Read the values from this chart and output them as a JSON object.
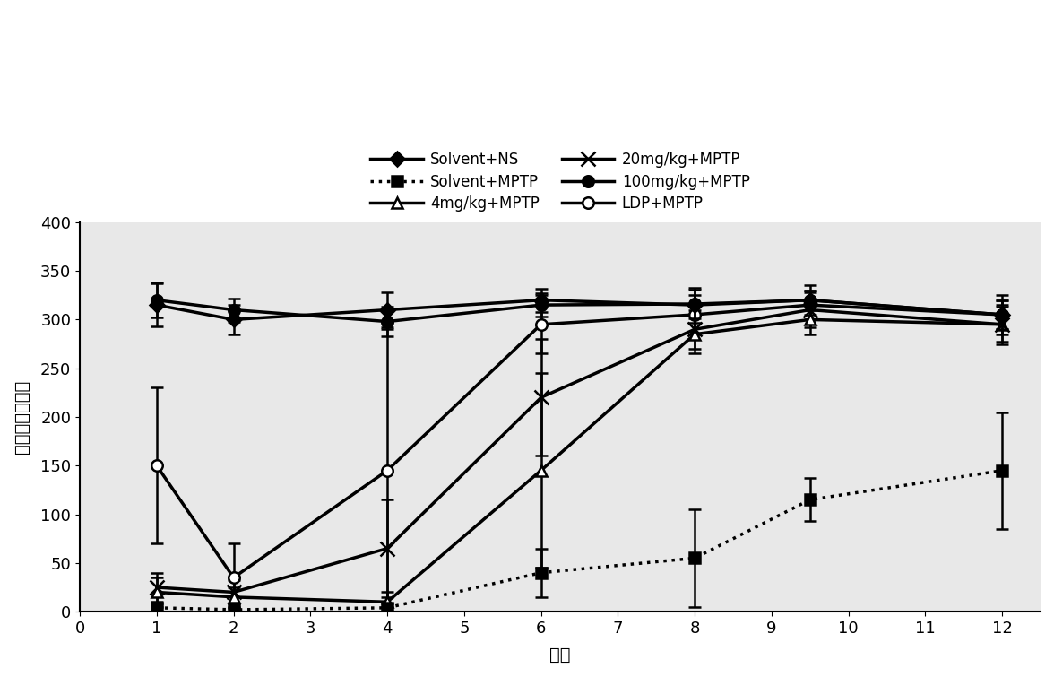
{
  "x_ticks": [
    0,
    1,
    2,
    3,
    4,
    5,
    6,
    7,
    8,
    9,
    10,
    11,
    12
  ],
  "xlim": [
    0,
    12.5
  ],
  "ylim": [
    0,
    400
  ],
  "y_ticks": [
    0,
    50,
    100,
    150,
    200,
    250,
    300,
    350,
    400
  ],
  "xlabel": "小时",
  "ylabel": "停留时间（秒）",
  "series": [
    {
      "label": "Solvent+NS",
      "x": [
        1,
        2,
        4,
        6,
        8,
        9.5,
        12
      ],
      "y": [
        315,
        300,
        310,
        320,
        315,
        320,
        305
      ],
      "yerr": [
        22,
        15,
        18,
        12,
        18,
        15,
        20
      ],
      "color": "#000000",
      "linestyle": "-",
      "marker": "D",
      "markersize": 8,
      "linewidth": 2.5,
      "fillstyle": "full",
      "zorder": 5
    },
    {
      "label": "Solvent+MPTP",
      "x": [
        1,
        2,
        4,
        6,
        8,
        9.5,
        12
      ],
      "y": [
        4,
        2,
        4,
        40,
        55,
        115,
        145
      ],
      "yerr": [
        4,
        2,
        4,
        25,
        50,
        22,
        60
      ],
      "color": "#000000",
      "linestyle": "dotted",
      "marker": "s",
      "markersize": 9,
      "linewidth": 2.5,
      "fillstyle": "full",
      "zorder": 4
    },
    {
      "label": "4mg/kg+MPTP",
      "x": [
        1,
        2,
        4,
        6,
        8,
        9.5,
        12
      ],
      "y": [
        20,
        15,
        10,
        145,
        285,
        300,
        295
      ],
      "yerr": [
        15,
        10,
        10,
        100,
        20,
        15,
        18
      ],
      "color": "#000000",
      "linestyle": "-",
      "marker": "^",
      "markersize": 9,
      "linewidth": 2.5,
      "fillstyle": "none",
      "zorder": 3
    },
    {
      "label": "20mg/kg+MPTP",
      "x": [
        1,
        2,
        4,
        6,
        8,
        9.5,
        12
      ],
      "y": [
        25,
        20,
        65,
        220,
        290,
        310,
        295
      ],
      "yerr": [
        15,
        12,
        50,
        60,
        20,
        18,
        20
      ],
      "color": "#000000",
      "linestyle": "-",
      "marker": "x",
      "markersize": 11,
      "linewidth": 2.5,
      "fillstyle": "full",
      "zorder": 3
    },
    {
      "label": "100mg/kg+MPTP",
      "x": [
        1,
        2,
        4,
        6,
        8,
        9.5,
        12
      ],
      "y": [
        320,
        310,
        298,
        315,
        316,
        320,
        305
      ],
      "yerr": [
        18,
        12,
        15,
        12,
        15,
        10,
        15
      ],
      "color": "#000000",
      "linestyle": "-",
      "marker": "o",
      "markersize": 9,
      "linewidth": 2.5,
      "fillstyle": "full",
      "zorder": 6
    },
    {
      "label": "LDP+MPTP",
      "x": [
        1,
        2,
        4,
        6,
        8,
        9.5,
        12
      ],
      "y": [
        150,
        35,
        145,
        295,
        305,
        315,
        305
      ],
      "yerr": [
        80,
        35,
        145,
        30,
        20,
        15,
        15
      ],
      "color": "#000000",
      "linestyle": "-",
      "marker": "o",
      "markersize": 9,
      "linewidth": 2.5,
      "fillstyle": "none",
      "zorder": 2
    }
  ],
  "legend_order": [
    0,
    2,
    4,
    1,
    3,
    5
  ],
  "legend_ncol": 2,
  "axis_fontsize": 14,
  "tick_fontsize": 13,
  "legend_fontsize": 12
}
